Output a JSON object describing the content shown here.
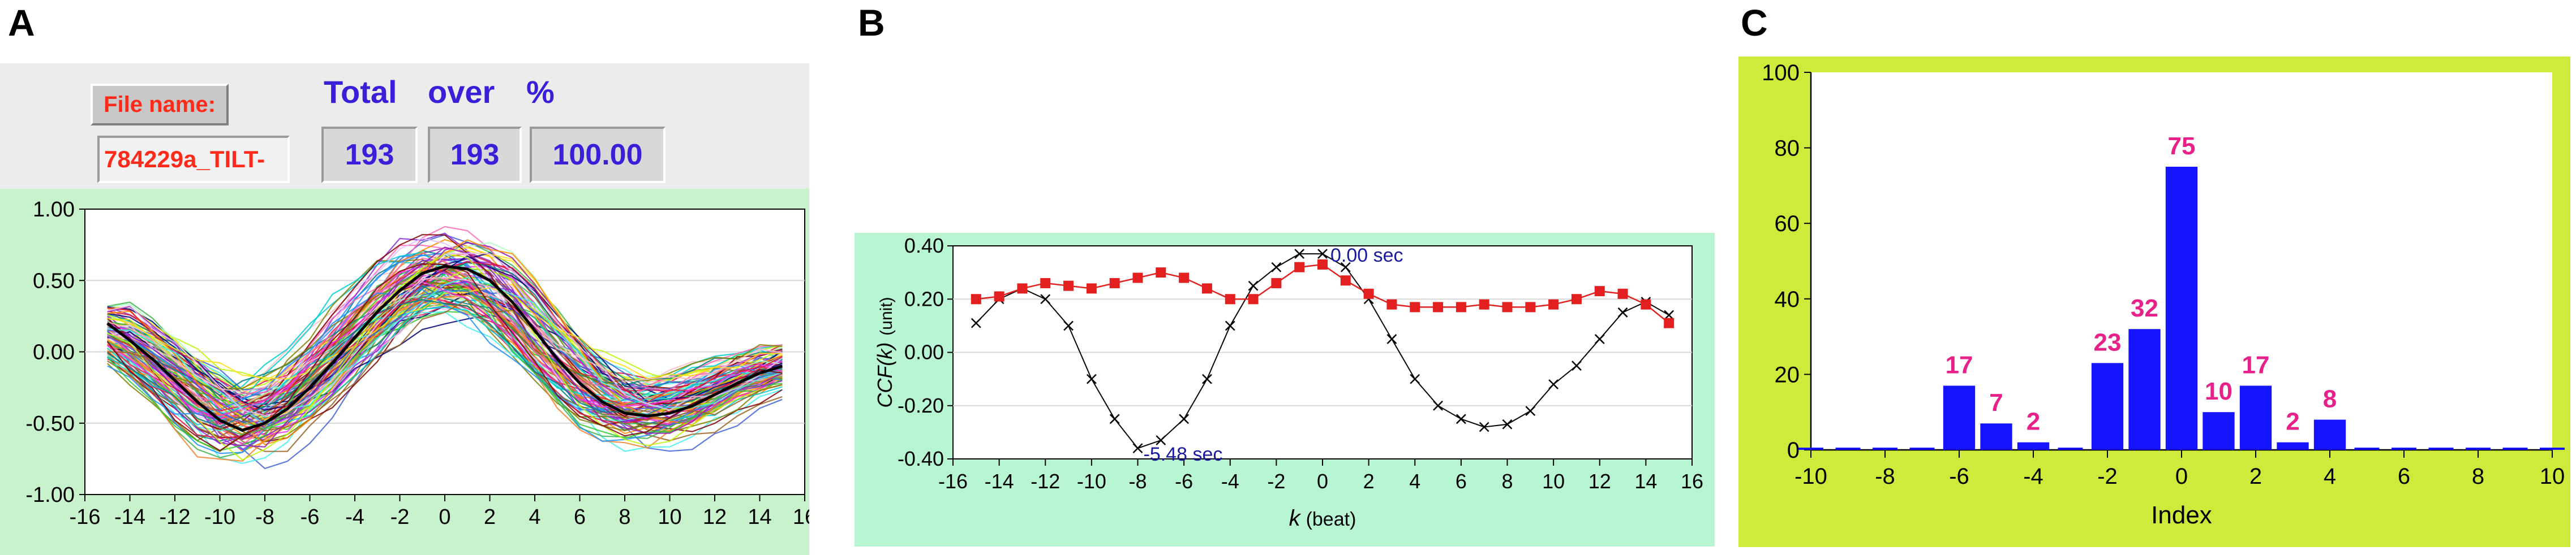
{
  "panels": {
    "a": {
      "letter": "A",
      "file_name_label": "File name:",
      "file_name_value": "784229a_TILT-",
      "total_label": "Total",
      "over_label": "over",
      "percent_label": "%",
      "total_value": "193",
      "over_value": "193",
      "percent_value": "100.00"
    },
    "b": {
      "letter": "B"
    },
    "c": {
      "letter": "C"
    }
  },
  "colors": {
    "header_text": "#3a1fd8",
    "file_name_text": "#ff2a1a",
    "panel_a_background": "#c8f2cc",
    "panel_b_background": "#b8f5d2",
    "panel_c_background": "#cdeb3a",
    "bar_color": "#1414ff",
    "bar_label_color": "#e8208a",
    "series_red": "#e32020",
    "series_black": "#000000"
  },
  "chart_data": [
    {
      "id": "a",
      "type": "line",
      "title": "",
      "xlabel": "",
      "ylabel": "",
      "xlim": [
        -16,
        16
      ],
      "ylim": [
        -1.0,
        1.0
      ],
      "x_ticks": [
        "-16",
        "-14",
        "-12",
        "-10",
        "-8",
        "-6",
        "-4",
        "-2",
        "0",
        "2",
        "4",
        "6",
        "8",
        "10",
        "12",
        "14",
        "16"
      ],
      "y_ticks": [
        "1.00",
        "0.50",
        "0.00",
        "-0.50",
        "-1.00"
      ],
      "grid": true,
      "series_count_shown": 193,
      "mean_series": {
        "x": [
          -15,
          -14,
          -13,
          -12,
          -11,
          -10,
          -9,
          -8,
          -7,
          -6,
          -5,
          -4,
          -3,
          -2,
          -1,
          0,
          1,
          2,
          3,
          4,
          5,
          6,
          7,
          8,
          9,
          10,
          11,
          12,
          13,
          14,
          15
        ],
        "y": [
          0.2,
          0.08,
          -0.05,
          -0.2,
          -0.35,
          -0.48,
          -0.55,
          -0.5,
          -0.4,
          -0.25,
          -0.08,
          0.1,
          0.28,
          0.43,
          0.55,
          0.6,
          0.58,
          0.5,
          0.35,
          0.15,
          -0.05,
          -0.22,
          -0.35,
          -0.43,
          -0.45,
          -0.43,
          -0.38,
          -0.3,
          -0.22,
          -0.15,
          -0.1
        ]
      }
    },
    {
      "id": "b",
      "type": "line",
      "title": "",
      "xlabel": "k",
      "xlabel_unit": "(beat)",
      "ylabel": "CCF(k)",
      "ylabel_unit": "(unit)",
      "xlim": [
        -16,
        16
      ],
      "ylim": [
        -0.4,
        0.4
      ],
      "x_ticks": [
        "-16",
        "-14",
        "-12",
        "-10",
        "-8",
        "-6",
        "-4",
        "-2",
        "0",
        "2",
        "4",
        "6",
        "8",
        "10",
        "12",
        "14",
        "16"
      ],
      "y_ticks": [
        "0.40",
        "0.20",
        "0.00",
        "-0.20",
        "-0.40"
      ],
      "grid": true,
      "annotations": [
        {
          "text": "0.00 sec",
          "x": 0,
          "y": 0.37
        },
        {
          "text": "-5.48 sec",
          "x": -8,
          "y": -0.36
        }
      ],
      "x": [
        -15,
        -14,
        -13,
        -12,
        -11,
        -10,
        -9,
        -8,
        -7,
        -6,
        -5,
        -4,
        -3,
        -2,
        -1,
        0,
        1,
        2,
        3,
        4,
        5,
        6,
        7,
        8,
        9,
        10,
        11,
        12,
        13,
        14,
        15
      ],
      "series": [
        {
          "marker": "square",
          "values": [
            0.2,
            0.21,
            0.24,
            0.26,
            0.25,
            0.24,
            0.26,
            0.28,
            0.3,
            0.28,
            0.24,
            0.2,
            0.2,
            0.26,
            0.32,
            0.33,
            0.27,
            0.22,
            0.18,
            0.17,
            0.17,
            0.17,
            0.18,
            0.17,
            0.17,
            0.18,
            0.2,
            0.23,
            0.22,
            0.18,
            0.11
          ]
        },
        {
          "marker": "cross",
          "values": [
            0.11,
            0.2,
            0.24,
            0.2,
            0.1,
            -0.1,
            -0.25,
            -0.36,
            -0.33,
            -0.25,
            -0.1,
            0.1,
            0.25,
            0.32,
            0.37,
            0.37,
            0.32,
            0.2,
            0.05,
            -0.1,
            -0.2,
            -0.25,
            -0.28,
            -0.27,
            -0.22,
            -0.12,
            -0.05,
            0.05,
            0.15,
            0.19,
            0.14
          ]
        }
      ]
    },
    {
      "id": "c",
      "type": "bar",
      "title": "",
      "xlabel": "Index",
      "ylabel": "",
      "xlim": [
        -10,
        10
      ],
      "ylim": [
        0,
        100
      ],
      "x_ticks": [
        "-10",
        "-8",
        "-6",
        "-4",
        "-2",
        "0",
        "2",
        "4",
        "6",
        "8",
        "10"
      ],
      "y_ticks": [
        "100",
        "80",
        "60",
        "40",
        "20",
        "0"
      ],
      "grid": false,
      "x": [
        -6,
        -5,
        -4,
        -2,
        -1,
        0,
        1,
        2,
        3,
        4
      ],
      "values": [
        17,
        7,
        2,
        23,
        32,
        75,
        10,
        17,
        2,
        8
      ],
      "data_labels": [
        "17",
        "7",
        "2",
        "23",
        "32",
        "75",
        "10",
        "17",
        "2",
        "8"
      ]
    }
  ]
}
